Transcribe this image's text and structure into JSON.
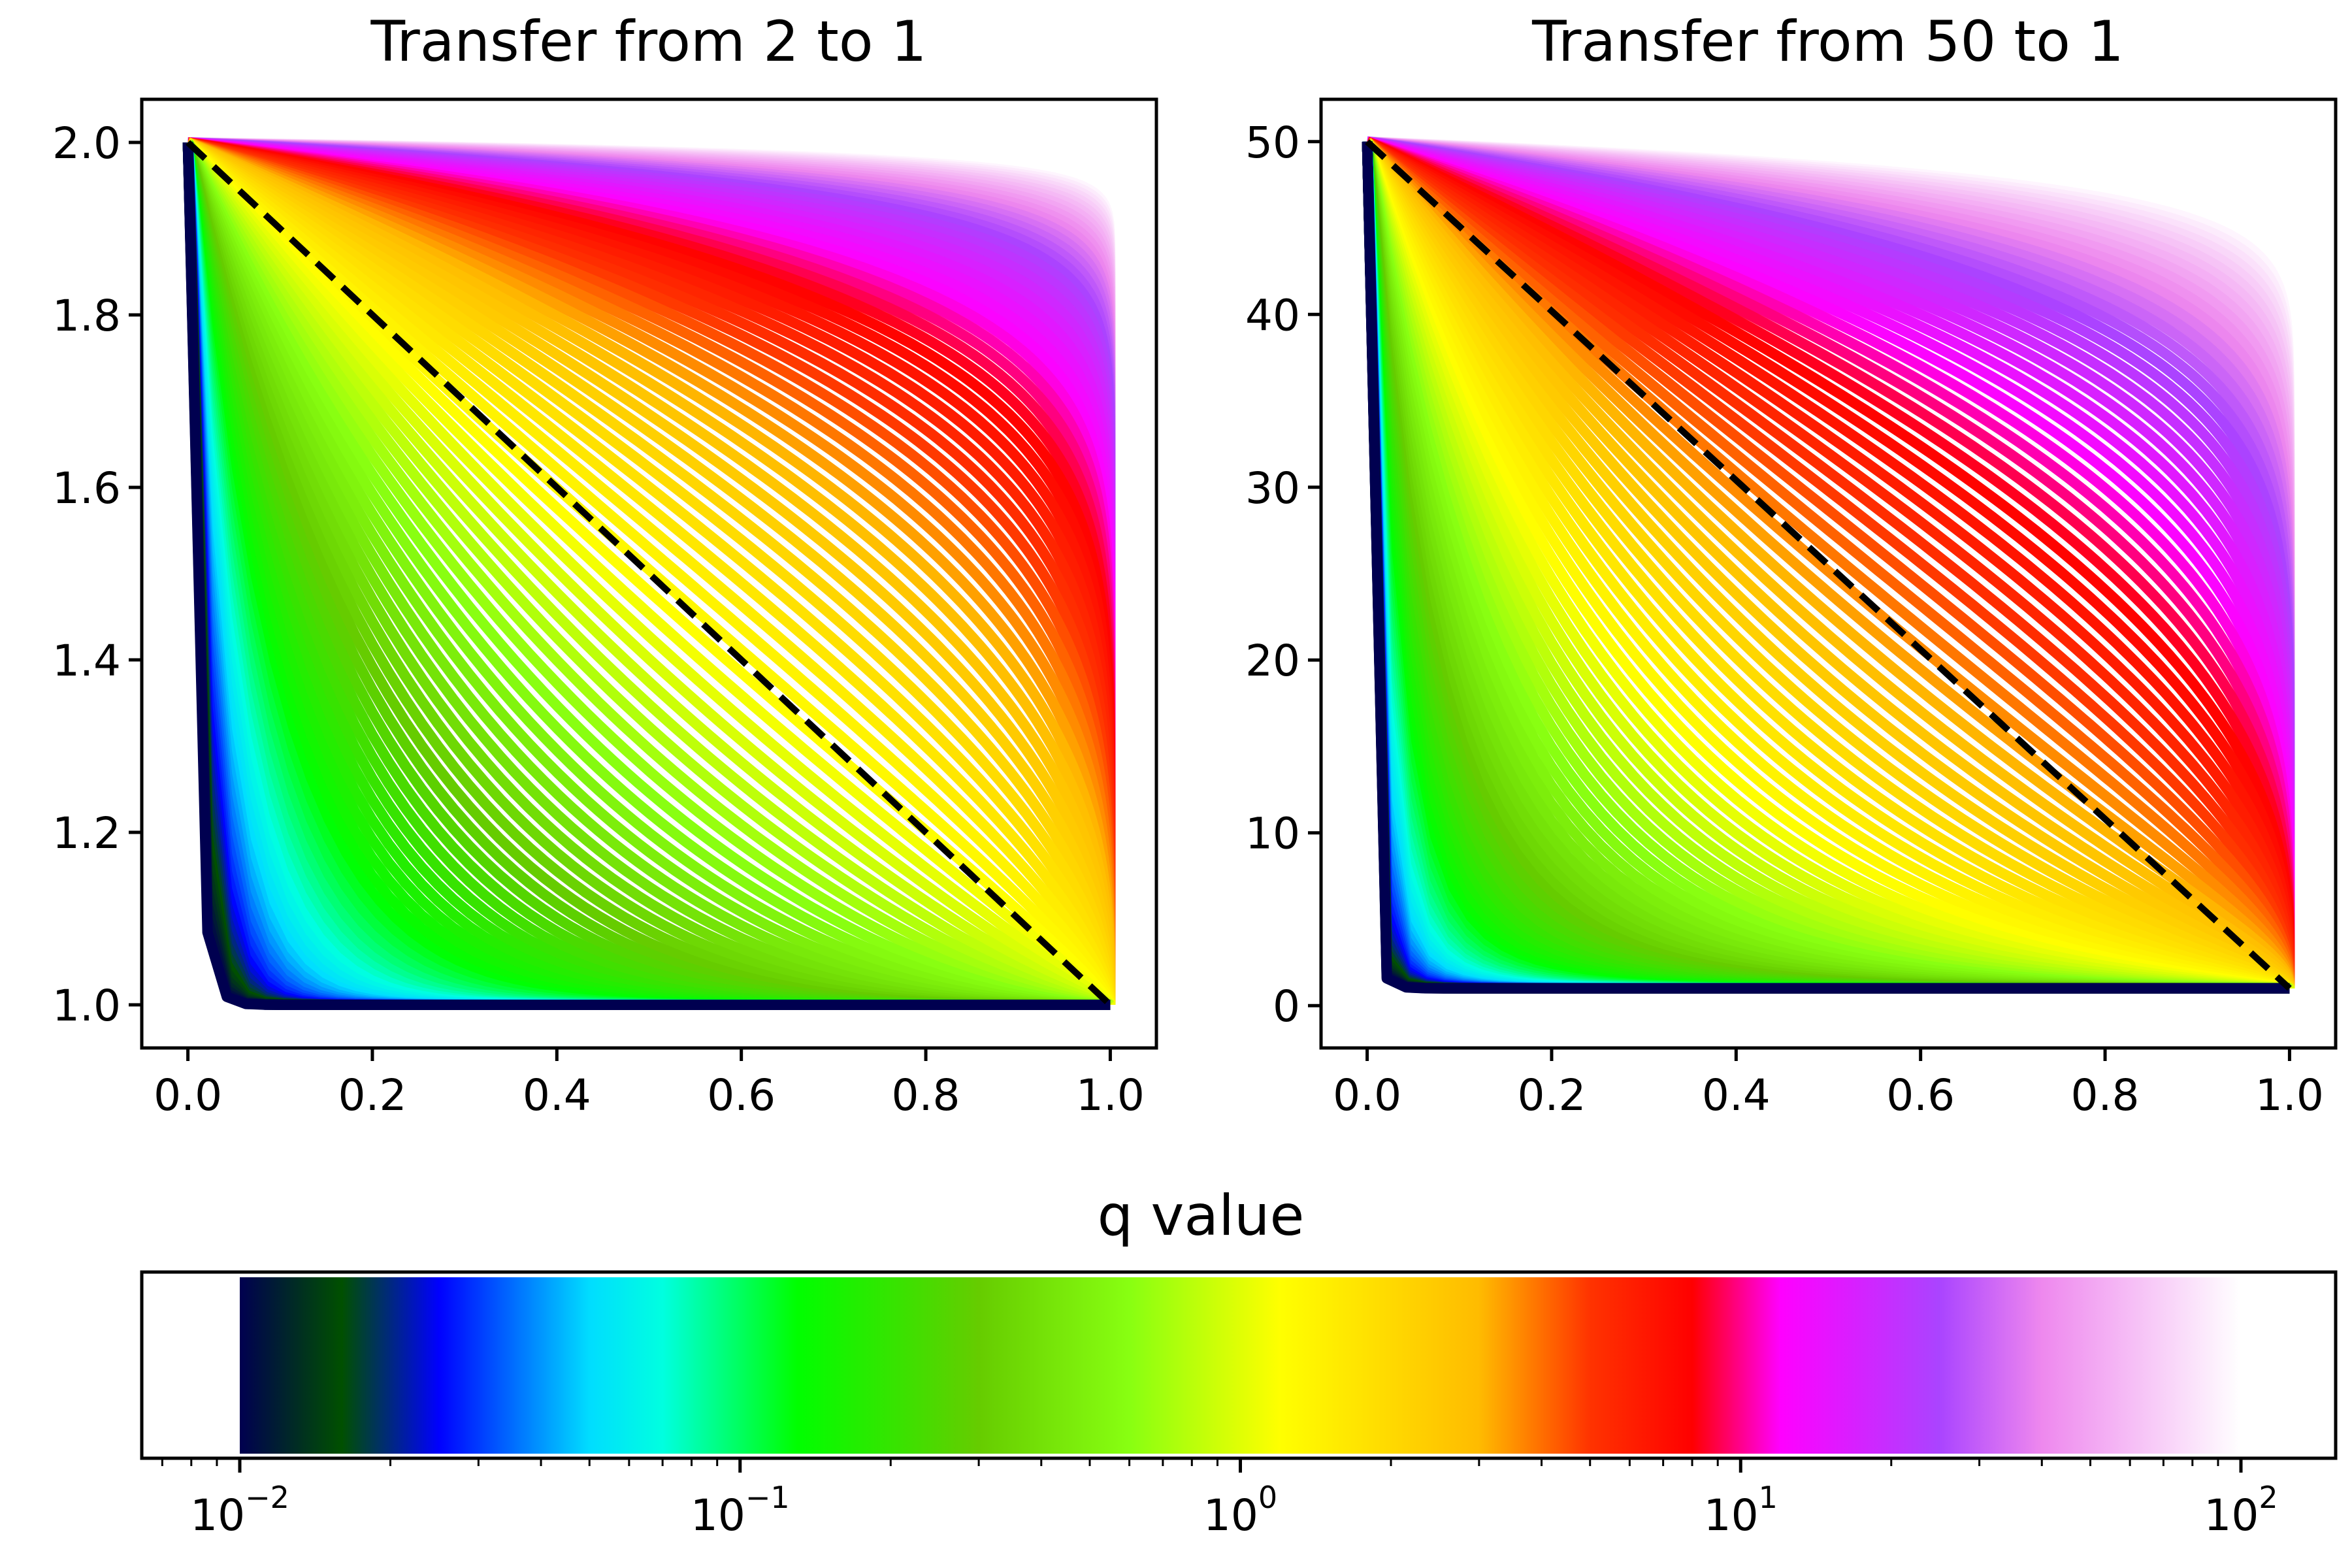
{
  "chart_data": [
    {
      "type": "line",
      "title": "Transfer from 2 to 1",
      "xlabel": "",
      "ylabel": "",
      "xlim": [
        -0.05,
        1.05
      ],
      "ylim": [
        0.95,
        2.05
      ],
      "x_ticks": [
        "0.0",
        "0.2",
        "0.4",
        "0.6",
        "0.8",
        "1.0"
      ],
      "x_tick_values": [
        0,
        0.2,
        0.4,
        0.6,
        0.8,
        1.0
      ],
      "y_ticks": [
        "1.0",
        "1.2",
        "1.4",
        "1.6",
        "1.8",
        "2.0"
      ],
      "y_tick_values": [
        1.0,
        1.2,
        1.4,
        1.6,
        1.8,
        2.0
      ],
      "start": 2,
      "end": 1,
      "q_range": [
        0.01,
        100
      ],
      "curve_count": 120,
      "reference_line": {
        "style": "dashed",
        "color": "#000000",
        "from": [
          0,
          2
        ],
        "to": [
          1,
          1
        ]
      }
    },
    {
      "type": "line",
      "title": "Transfer from 50 to 1",
      "xlabel": "",
      "ylabel": "",
      "xlim": [
        -0.05,
        1.05
      ],
      "ylim": [
        -2.45,
        52.45
      ],
      "x_ticks": [
        "0.0",
        "0.2",
        "0.4",
        "0.6",
        "0.8",
        "1.0"
      ],
      "x_tick_values": [
        0,
        0.2,
        0.4,
        0.6,
        0.8,
        1.0
      ],
      "y_ticks": [
        "0",
        "10",
        "20",
        "30",
        "40",
        "50"
      ],
      "y_tick_values": [
        0,
        10,
        20,
        30,
        40,
        50
      ],
      "start": 50,
      "end": 1,
      "q_range": [
        0.01,
        100
      ],
      "curve_count": 120,
      "reference_line": {
        "style": "dashed",
        "color": "#000000",
        "from": [
          0,
          50
        ],
        "to": [
          1,
          1
        ]
      }
    }
  ],
  "colorbar": {
    "title": "q value",
    "scale": "log",
    "range": [
      0.01,
      100
    ],
    "ticks": [
      {
        "base": "10",
        "exp": "−2",
        "value": 0.01
      },
      {
        "base": "10",
        "exp": "−1",
        "value": 0.1
      },
      {
        "base": "10",
        "exp": "0",
        "value": 1
      },
      {
        "base": "10",
        "exp": "1",
        "value": 10
      },
      {
        "base": "10",
        "exp": "2",
        "value": 100
      }
    ],
    "colors": [
      {
        "q": 0.01,
        "color": "#000050"
      },
      {
        "q": 0.016,
        "color": "#005000"
      },
      {
        "q": 0.025,
        "color": "#0000ff"
      },
      {
        "q": 0.05,
        "color": "#00ddff"
      },
      {
        "q": 0.07,
        "color": "#00ffe0"
      },
      {
        "q": 0.13,
        "color": "#00ff00"
      },
      {
        "q": 0.3,
        "color": "#66cc00"
      },
      {
        "q": 0.6,
        "color": "#88ff11"
      },
      {
        "q": 1.2,
        "color": "#ffff00"
      },
      {
        "q": 3.0,
        "color": "#ffbb00"
      },
      {
        "q": 5.0,
        "color": "#ff3300"
      },
      {
        "q": 8.0,
        "color": "#ff0000"
      },
      {
        "q": 12.0,
        "color": "#ff00ff"
      },
      {
        "q": 25.0,
        "color": "#aa44ff"
      },
      {
        "q": 40.0,
        "color": "#ee88ee"
      },
      {
        "q": 100,
        "color": "#ffffff"
      }
    ]
  }
}
